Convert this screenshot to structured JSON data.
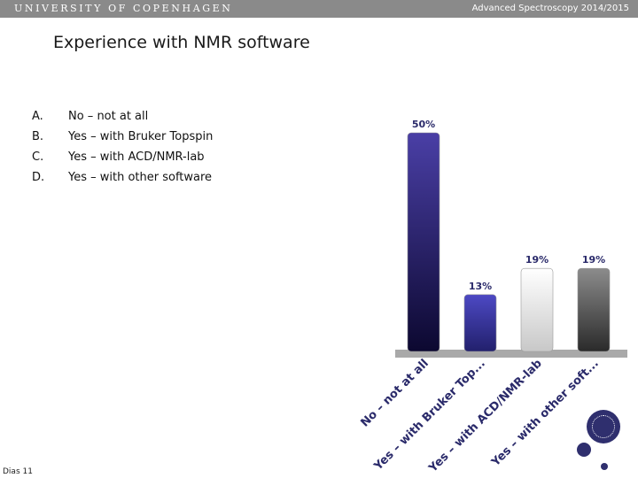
{
  "header": {
    "university": "UNIVERSITY OF COPENHAGEN",
    "course": "Advanced Spectroscopy 2014/2015"
  },
  "slide": {
    "title": "Experience with NMR software",
    "number_label": "Dias 11"
  },
  "answers": [
    {
      "letter": "A.",
      "text": "No – not at all"
    },
    {
      "letter": "B.",
      "text": "Yes – with Bruker Topspin"
    },
    {
      "letter": "C.",
      "text": "Yes – with ACD/NMR-lab"
    },
    {
      "letter": "D.",
      "text": "Yes – with other software"
    }
  ],
  "chart_data": {
    "type": "bar",
    "categories": [
      "No – not at all",
      "Yes – with Bruker Top...",
      "Yes – with ACD/NMR-lab",
      "Yes – with other soft..."
    ],
    "values": [
      50,
      13,
      19,
      19
    ],
    "data_labels": [
      "50%",
      "13%",
      "19%",
      "19%"
    ],
    "ylim": [
      0,
      50
    ],
    "grid": false,
    "colors": {
      "bar_fills": [
        [
          "#4a3fa6",
          "#0c0830"
        ],
        [
          "#4d49c4",
          "#22206c"
        ],
        [
          "#ffffff",
          "#c8c8c8"
        ],
        [
          "#8c8c8c",
          "#2a2a2a"
        ]
      ],
      "floor": "#a9a9a9",
      "label": "#2a2a6a"
    }
  },
  "logo": {
    "icon": "university-seal-icon"
  }
}
